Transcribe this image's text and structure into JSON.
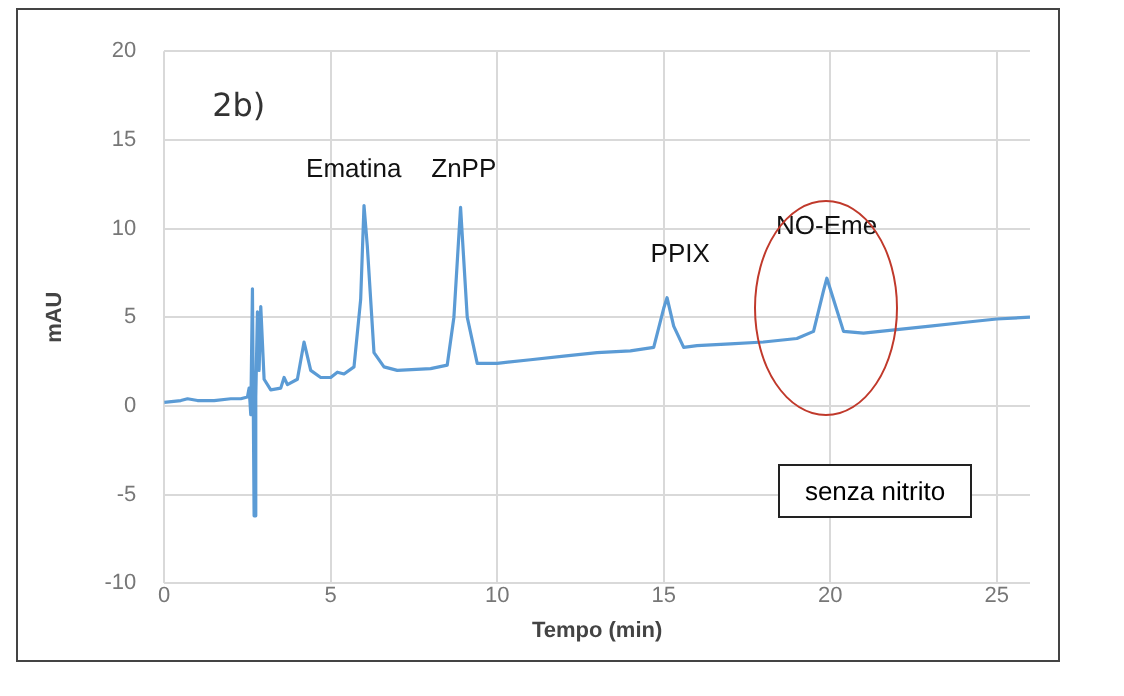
{
  "chart_data": {
    "type": "line",
    "title": "2b)",
    "xlabel": "Tempo (min)",
    "ylabel": "mAU",
    "x": [
      0,
      0.5,
      0.7,
      1,
      1.5,
      2,
      2.3,
      2.5,
      2.55,
      2.6,
      2.65,
      2.7,
      2.75,
      2.8,
      2.85,
      2.9,
      3.0,
      3.2,
      3.5,
      3.6,
      3.7,
      4.0,
      4.2,
      4.4,
      4.7,
      5,
      5.2,
      5.4,
      5.7,
      5.9,
      6.0,
      6.1,
      6.3,
      6.6,
      7,
      8,
      8.5,
      8.7,
      8.9,
      9.1,
      9.4,
      10,
      11,
      12,
      13,
      14,
      14.7,
      15.0,
      15.1,
      15.3,
      15.6,
      16,
      17,
      18,
      19,
      19.5,
      19.8,
      19.9,
      20.1,
      20.4,
      21,
      22,
      23,
      24,
      25,
      26
    ],
    "series": [
      {
        "color": "#5b9bd5",
        "values": [
          0.2,
          0.3,
          0.4,
          0.3,
          0.3,
          0.4,
          0.4,
          0.5,
          1,
          -0.5,
          6.6,
          -6.2,
          0.5,
          5.3,
          2,
          5.6,
          1.5,
          0.9,
          1,
          1.6,
          1.2,
          1.5,
          3.6,
          2,
          1.6,
          1.6,
          1.9,
          1.8,
          2.2,
          6,
          11.3,
          9,
          3,
          2.2,
          2.0,
          2.1,
          2.3,
          5,
          11.2,
          5,
          2.4,
          2.4,
          2.6,
          2.8,
          3.0,
          3.1,
          3.3,
          5.5,
          6.1,
          4.5,
          3.3,
          3.4,
          3.5,
          3.6,
          3.8,
          4.2,
          6.5,
          7.2,
          6,
          4.2,
          4.1,
          4.3,
          4.5,
          4.7,
          4.9,
          5.0
        ]
      }
    ],
    "xlim": [
      0,
      26
    ],
    "xticks": [
      0,
      5,
      10,
      15,
      20,
      25
    ],
    "ylim": [
      -10,
      20
    ],
    "yticks": [
      -10,
      -5,
      0,
      5,
      10,
      15,
      20
    ],
    "grid": true,
    "legend": false,
    "marker": "none",
    "line_style": "solid",
    "annotations": [
      "Ematina",
      "ZnPP",
      "PPIX",
      "NO-Eme",
      "senza nitrito"
    ]
  }
}
